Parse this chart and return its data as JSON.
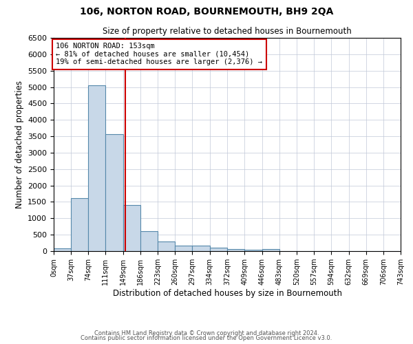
{
  "title": "106, NORTON ROAD, BOURNEMOUTH, BH9 2QA",
  "subtitle": "Size of property relative to detached houses in Bournemouth",
  "xlabel": "Distribution of detached houses by size in Bournemouth",
  "ylabel": "Number of detached properties",
  "bin_edges": [
    0,
    37,
    74,
    111,
    149,
    186,
    223,
    260,
    297,
    334,
    372,
    409,
    446,
    483,
    520,
    557,
    594,
    632,
    669,
    706,
    743
  ],
  "bar_heights": [
    75,
    1625,
    5050,
    3575,
    1400,
    600,
    300,
    160,
    160,
    100,
    60,
    40,
    60,
    0,
    0,
    0,
    0,
    0,
    0,
    0
  ],
  "bar_color": "#c8d8e8",
  "bar_edge_color": "#5588aa",
  "property_line_x": 153,
  "property_line_color": "#cc0000",
  "ylim": [
    0,
    6500
  ],
  "annotation_text": "106 NORTON ROAD: 153sqm\n← 81% of detached houses are smaller (10,454)\n19% of semi-detached houses are larger (2,376) →",
  "annotation_box_color": "#cc0000",
  "annotation_text_color": "#000000",
  "footnote1": "Contains HM Land Registry data © Crown copyright and database right 2024.",
  "footnote2": "Contains public sector information licensed under the Open Government Licence v3.0.",
  "background_color": "#ffffff",
  "grid_color": "#c0c8d8",
  "tick_labels": [
    "0sqm",
    "37sqm",
    "74sqm",
    "111sqm",
    "149sqm",
    "186sqm",
    "223sqm",
    "260sqm",
    "297sqm",
    "334sqm",
    "372sqm",
    "409sqm",
    "446sqm",
    "483sqm",
    "520sqm",
    "557sqm",
    "594sqm",
    "632sqm",
    "669sqm",
    "706sqm",
    "743sqm"
  ],
  "yticks": [
    0,
    500,
    1000,
    1500,
    2000,
    2500,
    3000,
    3500,
    4000,
    4500,
    5000,
    5500,
    6000,
    6500
  ]
}
